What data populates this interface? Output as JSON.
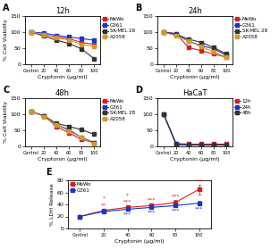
{
  "chart_data": [
    {
      "type": "line",
      "panel_label": "A",
      "title": "12h",
      "x_label": "Cryptonin (μg/ml)",
      "y_label": "% Cell Viability",
      "categories": [
        "Control",
        "20",
        "40",
        "60",
        "80",
        "100"
      ],
      "marker": "square",
      "line_style": "solid",
      "series": [
        {
          "name": "MeWo",
          "color": "#d42020",
          "values": [
            100,
            92,
            85,
            80,
            68,
            62
          ],
          "errors": [
            3,
            3,
            4,
            4,
            5,
            5
          ]
        },
        {
          "name": "G361",
          "color": "#1a35cc",
          "values": [
            100,
            97,
            90,
            85,
            80,
            75
          ],
          "errors": [
            3,
            3,
            4,
            4,
            5,
            5
          ]
        },
        {
          "name": "SK-MEL 28",
          "color": "#333333",
          "values": [
            100,
            88,
            75,
            65,
            48,
            18
          ],
          "errors": [
            3,
            4,
            4,
            5,
            5,
            4
          ]
        },
        {
          "name": "A2058",
          "color": "#d4982a",
          "values": [
            100,
            92,
            82,
            75,
            62,
            55
          ],
          "errors": [
            3,
            3,
            4,
            4,
            5,
            5
          ]
        }
      ],
      "ylim": [
        0,
        150
      ],
      "yticks": [
        0,
        50,
        100,
        150
      ],
      "legend": "upper right"
    },
    {
      "type": "line",
      "panel_label": "B",
      "title": "24h",
      "x_label": "Cryptonin (μg/ml)",
      "categories": [
        "Control",
        "20",
        "40",
        "60",
        "80",
        "100"
      ],
      "marker": "square",
      "line_style": "solid",
      "series": [
        {
          "name": "MeWo",
          "color": "#d42020",
          "values": [
            100,
            95,
            52,
            42,
            32,
            22
          ],
          "errors": [
            3,
            3,
            5,
            5,
            4,
            4
          ]
        },
        {
          "name": "G361",
          "color": "#1a35cc",
          "values": [
            100,
            95,
            72,
            58,
            48,
            28
          ],
          "errors": [
            3,
            3,
            4,
            5,
            5,
            4
          ]
        },
        {
          "name": "SK-MEL 28",
          "color": "#333333",
          "values": [
            100,
            93,
            78,
            68,
            52,
            32
          ],
          "errors": [
            3,
            3,
            4,
            5,
            5,
            4
          ]
        },
        {
          "name": "A2058",
          "color": "#d4982a",
          "values": [
            100,
            88,
            72,
            55,
            38,
            22
          ],
          "errors": [
            3,
            3,
            4,
            5,
            4,
            4
          ]
        }
      ],
      "ylim": [
        0,
        150
      ],
      "yticks": [
        0,
        50,
        100,
        150
      ],
      "legend": "upper right"
    },
    {
      "type": "line",
      "panel_label": "C",
      "title": "48h",
      "x_label": "Cryptonin (μg/ml)",
      "y_label": "% Cell Viability",
      "categories": [
        "Control",
        "20",
        "40",
        "60",
        "80",
        "100"
      ],
      "marker": "square",
      "line_style": "solid",
      "series": [
        {
          "name": "MeWo",
          "color": "#d42020",
          "values": [
            108,
            95,
            62,
            42,
            22,
            12
          ],
          "errors": [
            4,
            3,
            5,
            5,
            4,
            4
          ]
        },
        {
          "name": "G361",
          "color": "#1a35cc",
          "values": [
            108,
            95,
            68,
            52,
            28,
            12
          ],
          "errors": [
            4,
            3,
            5,
            4,
            4,
            4
          ]
        },
        {
          "name": "SK-MEL 28",
          "color": "#333333",
          "values": [
            108,
            95,
            72,
            62,
            52,
            38
          ],
          "errors": [
            4,
            4,
            4,
            5,
            5,
            5
          ]
        },
        {
          "name": "A2058",
          "color": "#d4982a",
          "values": [
            108,
            93,
            68,
            48,
            28,
            8
          ],
          "errors": [
            4,
            3,
            4,
            5,
            4,
            4
          ]
        }
      ],
      "ylim": [
        0,
        150
      ],
      "yticks": [
        0,
        50,
        100,
        150
      ],
      "legend": "upper right"
    },
    {
      "type": "line",
      "panel_label": "D",
      "title": "HaCaT",
      "x_label": "Cryptonin (μg/ml)",
      "categories": [
        "Control",
        "20",
        "40",
        "60",
        "80",
        "100"
      ],
      "marker": "square",
      "line_style": "solid",
      "series": [
        {
          "name": "12h",
          "color": "#d42020",
          "values": [
            100,
            9,
            7,
            7,
            7,
            7
          ],
          "errors": [
            3,
            2,
            1,
            1,
            1,
            1
          ]
        },
        {
          "name": "24h",
          "color": "#1a35cc",
          "values": [
            100,
            7,
            5,
            5,
            5,
            5
          ],
          "errors": [
            3,
            2,
            1,
            1,
            1,
            1
          ]
        },
        {
          "name": "48h",
          "color": "#333333",
          "values": [
            100,
            5,
            4,
            4,
            4,
            4
          ],
          "errors": [
            3,
            2,
            1,
            1,
            1,
            1
          ]
        }
      ],
      "ylim": [
        0,
        150
      ],
      "yticks": [
        0,
        50,
        100,
        150
      ],
      "legend": "upper right"
    },
    {
      "type": "line",
      "panel_label": "E",
      "x_label": "Cryptonin (μg/ml)",
      "y_label": "% LDH Release",
      "categories": [
        "Control",
        "20",
        "40",
        "60",
        "80",
        "100"
      ],
      "marker": "square",
      "line_style": "solid",
      "series": [
        {
          "name": "MeWo",
          "color": "#d42020",
          "values": [
            20,
            30,
            35,
            38,
            43,
            65
          ],
          "errors": [
            2,
            3,
            3,
            3,
            4,
            8
          ]
        },
        {
          "name": "G361",
          "color": "#1a35cc",
          "values": [
            20,
            28,
            32,
            35,
            38,
            42
          ],
          "errors": [
            2,
            3,
            3,
            3,
            3,
            4
          ]
        }
      ],
      "annotations": [
        {
          "category": "20",
          "series": "MeWo",
          "text": "**"
        },
        {
          "category": "20",
          "series": "MeWo",
          "text": "*"
        },
        {
          "category": "40",
          "series": "MeWo",
          "text": "***"
        },
        {
          "category": "40",
          "series": "MeWo",
          "text": "*"
        },
        {
          "category": "60",
          "series": "MeWo",
          "text": "***"
        },
        {
          "category": "80",
          "series": "MeWo",
          "text": "***"
        },
        {
          "category": "100",
          "series": "MeWo",
          "text": "***"
        },
        {
          "category": "40",
          "series": "G361",
          "text": "***"
        },
        {
          "category": "60",
          "series": "G361",
          "text": "***"
        },
        {
          "category": "80",
          "series": "G361",
          "text": "***"
        },
        {
          "category": "100",
          "series": "G361",
          "text": "***"
        }
      ],
      "ylim": [
        0,
        80
      ],
      "yticks": [
        0,
        20,
        40,
        60,
        80
      ],
      "legend": "upper left"
    }
  ]
}
